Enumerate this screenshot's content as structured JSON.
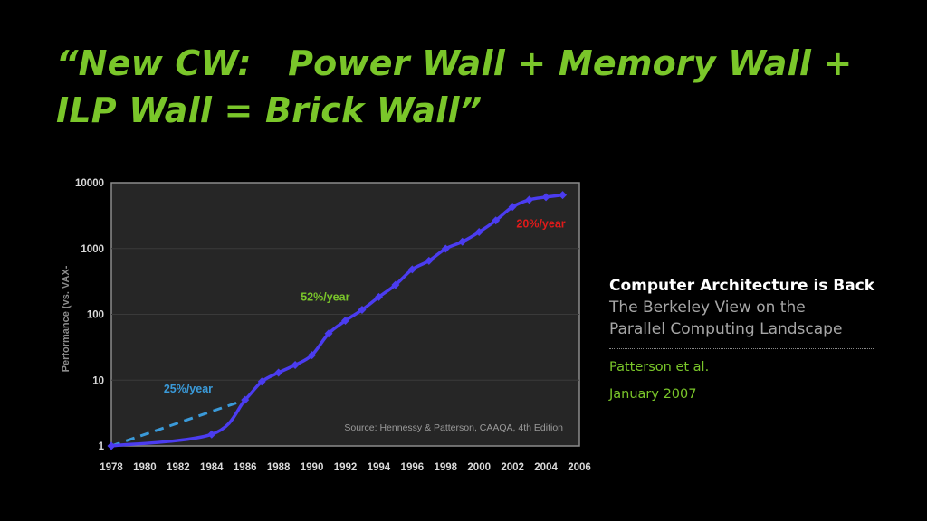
{
  "slide": {
    "title_line1": "“New CW:   Power Wall + Memory Wall +",
    "title_line2": "ILP Wall = Brick Wall”"
  },
  "side_panel": {
    "heading": "Computer Architecture is Back",
    "subtitle_line1": "The Berkeley View on the",
    "subtitle_line2": "Parallel Computing Landscape",
    "author": "Patterson et al.",
    "date": "January 2007"
  },
  "colors": {
    "title": "#7ac62a",
    "plot_bg": "#262626",
    "series": "#4b3cf0",
    "trend_dashed": "#3a9ad9",
    "label_52": "#7ac62a",
    "label_20": "#e01a1a",
    "axis_text": "#d9d9d9"
  },
  "chart_data": {
    "type": "line",
    "title": "",
    "xlabel": "",
    "ylabel": "Performance (vs. VAX-",
    "yscale": "log",
    "xlim": [
      1978,
      2006
    ],
    "ylim": [
      1,
      10000
    ],
    "x_ticks": [
      "1978",
      "1980",
      "1982",
      "1984",
      "1986",
      "1988",
      "1990",
      "1992",
      "1994",
      "1996",
      "1998",
      "2000",
      "2002",
      "2004",
      "2006"
    ],
    "y_ticks": [
      "1",
      "10",
      "100",
      "1000",
      "10000"
    ],
    "series": [
      {
        "points": [
          [
            1978,
            1
          ],
          [
            1984,
            1.5
          ],
          [
            1986,
            5
          ],
          [
            1987,
            9.5
          ],
          [
            1988,
            13
          ],
          [
            1989,
            17
          ],
          [
            1990,
            24
          ],
          [
            1991,
            51
          ],
          [
            1992,
            80
          ],
          [
            1993,
            117
          ],
          [
            1994,
            183
          ],
          [
            1995,
            280
          ],
          [
            1996,
            481
          ],
          [
            1997,
            649
          ],
          [
            1998,
            993
          ],
          [
            1999,
            1267
          ],
          [
            2000,
            1779
          ],
          [
            2001,
            2671
          ],
          [
            2002,
            4300
          ],
          [
            2003,
            5500
          ],
          [
            2004,
            6043
          ],
          [
            2005,
            6505
          ]
        ]
      }
    ],
    "trend_line": {
      "style": "dashed",
      "points": [
        [
          1978,
          1
        ],
        [
          1986,
          5
        ]
      ]
    },
    "annotations": [
      {
        "text": "25%/year",
        "x": 1982.6,
        "y": 6.5,
        "color": "#3a9ad9"
      },
      {
        "text": "52%/year",
        "x": 1990.8,
        "y": 160,
        "color": "#7ac62a"
      },
      {
        "text": "20%/year",
        "x": 2003.7,
        "y": 2100,
        "color": "#e01a1a"
      }
    ],
    "source": "Source: Hennessy & Patterson, CAAQA, 4th Edition"
  }
}
